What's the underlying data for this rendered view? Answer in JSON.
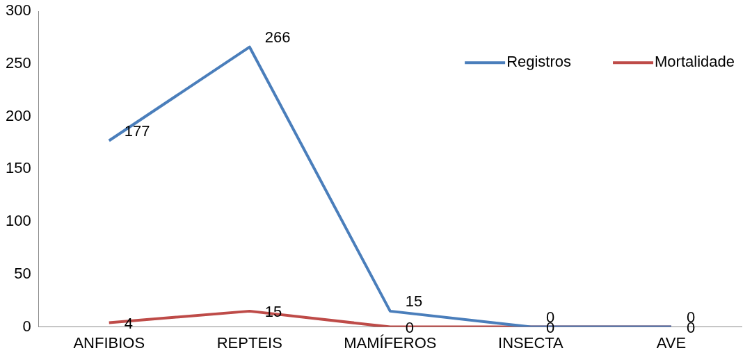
{
  "chart_data": {
    "type": "line",
    "categories": [
      "ANFIBIOS",
      "REPTEIS",
      "MAMÍFEROS",
      "INSECTA",
      "AVE"
    ],
    "series": [
      {
        "name": "Registros",
        "color": "#4a7ebb",
        "values": [
          177,
          266,
          15,
          0,
          0
        ]
      },
      {
        "name": "Mortalidade",
        "color": "#be4b48",
        "values": [
          4,
          15,
          0,
          0,
          0
        ]
      }
    ],
    "ylim": [
      0,
      300
    ],
    "yticks": [
      0,
      50,
      100,
      150,
      200,
      250,
      300
    ],
    "grid": false,
    "legend": "top right",
    "marker": "none",
    "line_style": "solid",
    "data_labels": true
  }
}
